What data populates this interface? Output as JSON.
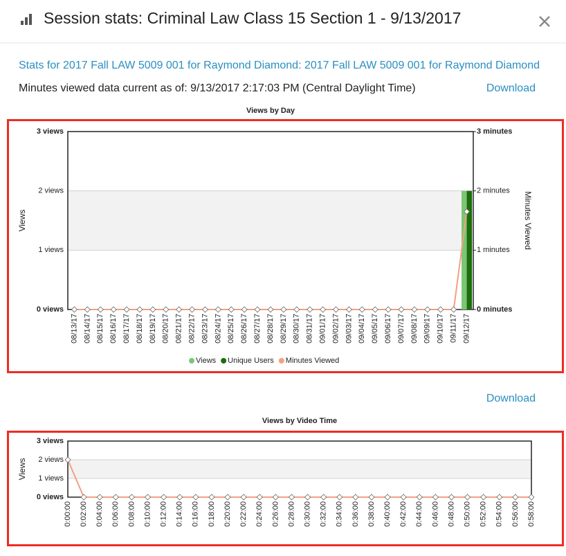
{
  "header": {
    "title": "Session stats: Criminal Law Class 15 Section 1 - 9/13/2017",
    "stats_link": "Stats for 2017 Fall LAW 5009 001 for Raymond Diamond: 2017 Fall LAW 5009 001 for Raymond Diamond",
    "current_as_of": "Minutes viewed data current as of: 9/13/2017 2:17:03 PM (Central Daylight Time)",
    "downloads": [
      "Download",
      "Download"
    ]
  },
  "chart_data": [
    {
      "type": "bar",
      "title": "Views by Day",
      "ylabel": "Views",
      "y2label": "Minutes Viewed",
      "categories": [
        "08/13/17",
        "08/14/17",
        "08/15/17",
        "08/16/17",
        "08/17/17",
        "08/18/17",
        "08/19/17",
        "08/20/17",
        "08/21/17",
        "08/22/17",
        "08/23/17",
        "08/24/17",
        "08/25/17",
        "08/26/17",
        "08/27/17",
        "08/28/17",
        "08/29/17",
        "08/30/17",
        "08/31/17",
        "09/01/17",
        "09/02/17",
        "09/03/17",
        "09/04/17",
        "09/05/17",
        "09/06/17",
        "09/07/17",
        "09/08/17",
        "09/09/17",
        "09/10/17",
        "09/11/17",
        "09/12/17"
      ],
      "series": [
        {
          "name": "Views",
          "type": "bar",
          "color": "#7cc576",
          "values": [
            0,
            0,
            0,
            0,
            0,
            0,
            0,
            0,
            0,
            0,
            0,
            0,
            0,
            0,
            0,
            0,
            0,
            0,
            0,
            0,
            0,
            0,
            0,
            0,
            0,
            0,
            0,
            0,
            0,
            0,
            2
          ]
        },
        {
          "name": "Unique Users",
          "type": "bar",
          "color": "#1b6e0b",
          "values": [
            0,
            0,
            0,
            0,
            0,
            0,
            0,
            0,
            0,
            0,
            0,
            0,
            0,
            0,
            0,
            0,
            0,
            0,
            0,
            0,
            0,
            0,
            0,
            0,
            0,
            0,
            0,
            0,
            0,
            0,
            2
          ]
        },
        {
          "name": "Minutes Viewed",
          "type": "line",
          "axis": "y2",
          "color": "#f4a07f",
          "values": [
            0,
            0,
            0,
            0,
            0,
            0,
            0,
            0,
            0,
            0,
            0,
            0,
            0,
            0,
            0,
            0,
            0,
            0,
            0,
            0,
            0,
            0,
            0,
            0,
            0,
            0,
            0,
            0,
            0,
            0,
            1.65
          ]
        }
      ],
      "ylim": [
        0,
        3
      ],
      "yticks": [
        {
          "value": 0,
          "label": "0 views"
        },
        {
          "value": 1,
          "label": "1 views"
        },
        {
          "value": 2,
          "label": "2 views"
        },
        {
          "value": 3,
          "label": "3 views"
        }
      ],
      "y2lim": [
        0,
        3
      ],
      "y2ticks": [
        {
          "value": 0,
          "label": "0 minutes"
        },
        {
          "value": 1,
          "label": "1 minutes"
        },
        {
          "value": 2,
          "label": "2 minutes"
        },
        {
          "value": 3,
          "label": "3 minutes"
        }
      ],
      "grid": true,
      "grid_bands": true,
      "legend": "bottom"
    },
    {
      "type": "line",
      "title": "Views by Video Time",
      "ylabel": "Views",
      "categories": [
        "0:00:00",
        "0:02:00",
        "0:04:00",
        "0:06:00",
        "0:08:00",
        "0:10:00",
        "0:12:00",
        "0:14:00",
        "0:16:00",
        "0:18:00",
        "0:20:00",
        "0:22:00",
        "0:24:00",
        "0:26:00",
        "0:28:00",
        "0:30:00",
        "0:32:00",
        "0:34:00",
        "0:36:00",
        "0:38:00",
        "0:40:00",
        "0:42:00",
        "0:44:00",
        "0:46:00",
        "0:48:00",
        "0:50:00",
        "0:52:00",
        "0:54:00",
        "0:56:00",
        "0:58:00"
      ],
      "series": [
        {
          "type": "line",
          "color": "#f4a07f",
          "values": [
            2,
            0,
            0,
            0,
            0,
            0,
            0,
            0,
            0,
            0,
            0,
            0,
            0,
            0,
            0,
            0,
            0,
            0,
            0,
            0,
            0,
            0,
            0,
            0,
            0,
            0,
            0,
            0,
            0,
            0
          ]
        }
      ],
      "ylim": [
        0,
        3
      ],
      "yticks": [
        {
          "value": 0,
          "label": "0 views"
        },
        {
          "value": 1,
          "label": "1 views"
        },
        {
          "value": 2,
          "label": "2 views"
        },
        {
          "value": 3,
          "label": "3 views"
        }
      ],
      "grid": true,
      "grid_bands": true
    }
  ]
}
